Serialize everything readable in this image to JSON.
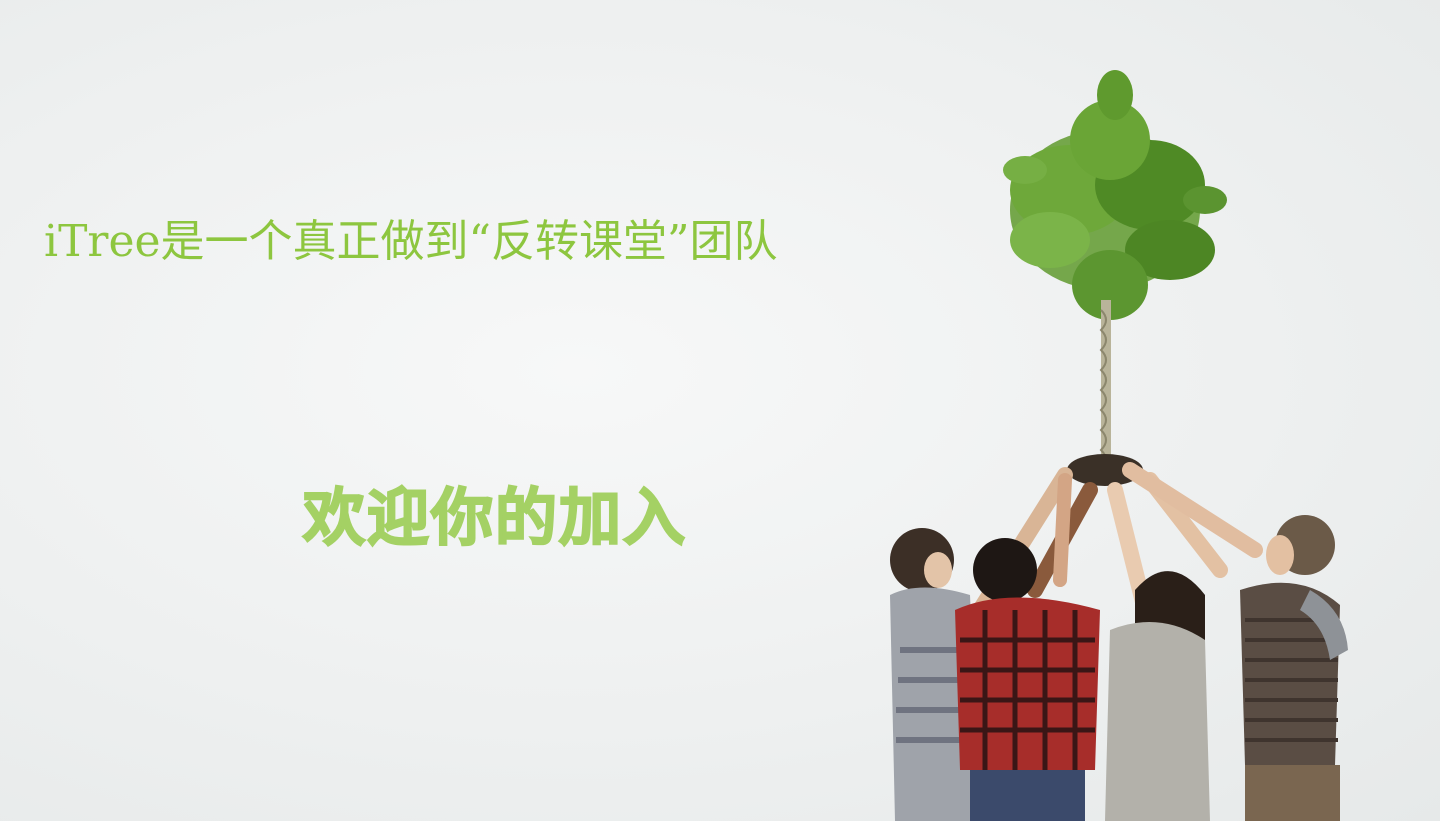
{
  "hero": {
    "headline": "iTree是一个真正做到“反转课堂”团队",
    "welcome": "欢迎你的加入"
  },
  "photo": {
    "subject": "group of people holding up a tree"
  },
  "colors": {
    "background": "#eef0f0",
    "headline_green": "#8dc63f",
    "welcome_green": "#a4d164",
    "leaf_green": "#5f9a2e"
  }
}
